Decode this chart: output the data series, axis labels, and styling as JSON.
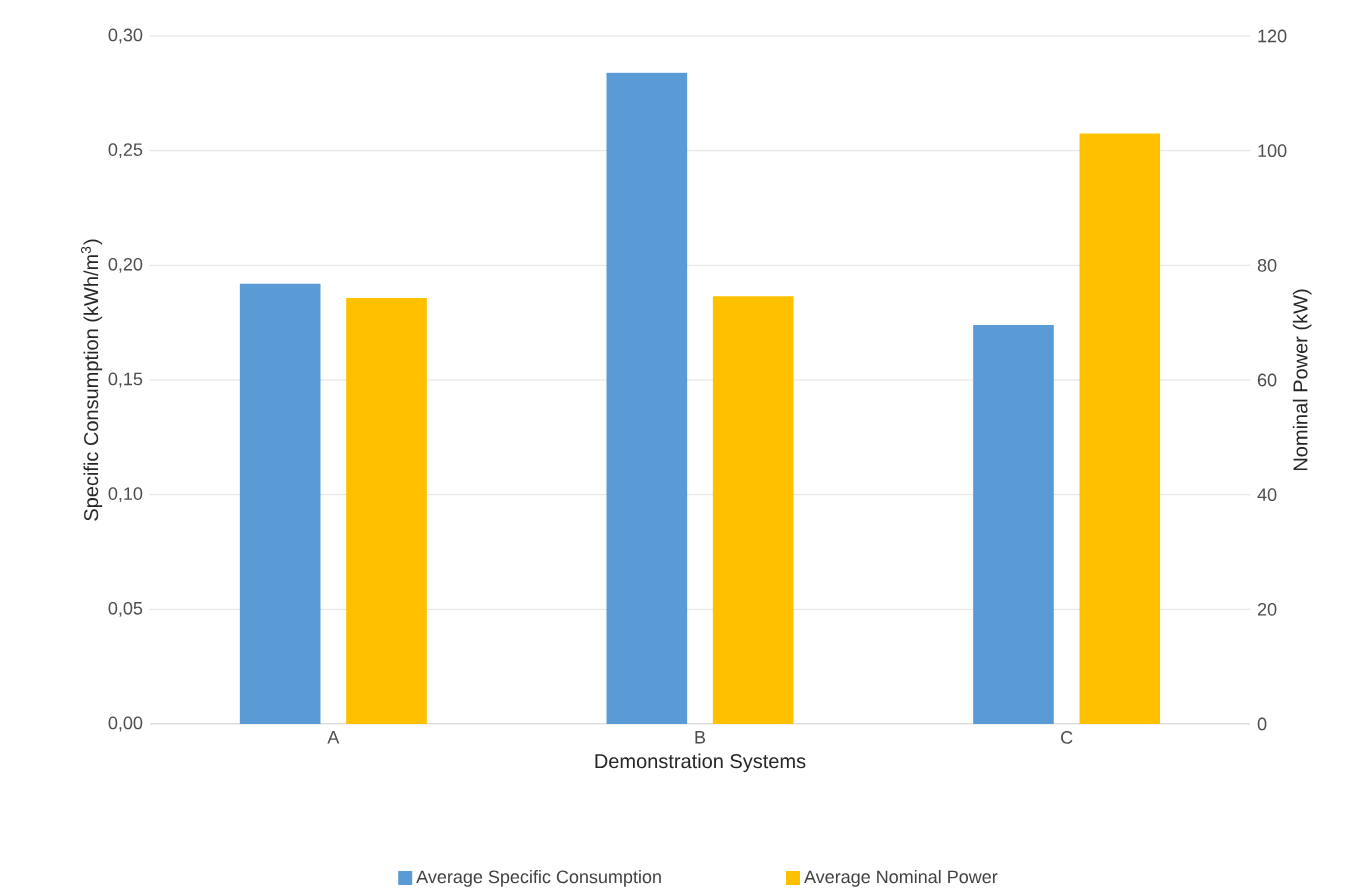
{
  "chart_data": {
    "type": "bar",
    "categories": [
      "A",
      "B",
      "C"
    ],
    "xlabel": "Demonstration Systems",
    "ylabel": "Specific Consumption (kWh/m$^{3}$)",
    "y2label": "Nominal Power (kW)",
    "series": [
      {
        "name": "Average Specific Consumption",
        "color": "#5b9bd5",
        "values": [
          0.192,
          0.284,
          0.174
        ]
      },
      {
        "name": "Average Nominal Power",
        "color": "#ffc000",
        "values": [
          74.3,
          74.6,
          103
        ],
        "axis": "y2"
      }
    ],
    "ylim": [
      0,
      0.3
    ],
    "yticks": [
      {
        "value": 0,
        "label": "0,00"
      },
      {
        "value": 0.05,
        "label": "0,05"
      },
      {
        "value": 0.1,
        "label": "0,10"
      },
      {
        "value": 0.15,
        "label": "0,15"
      },
      {
        "value": 0.2,
        "label": "0,20"
      },
      {
        "value": 0.25,
        "label": "0,25"
      },
      {
        "value": 0.3,
        "label": "0,30"
      }
    ],
    "y2lim": [
      0,
      120
    ],
    "y2ticks": [
      0,
      20,
      40,
      60,
      80,
      100,
      120
    ],
    "grid": "y",
    "legend": "bottom"
  }
}
